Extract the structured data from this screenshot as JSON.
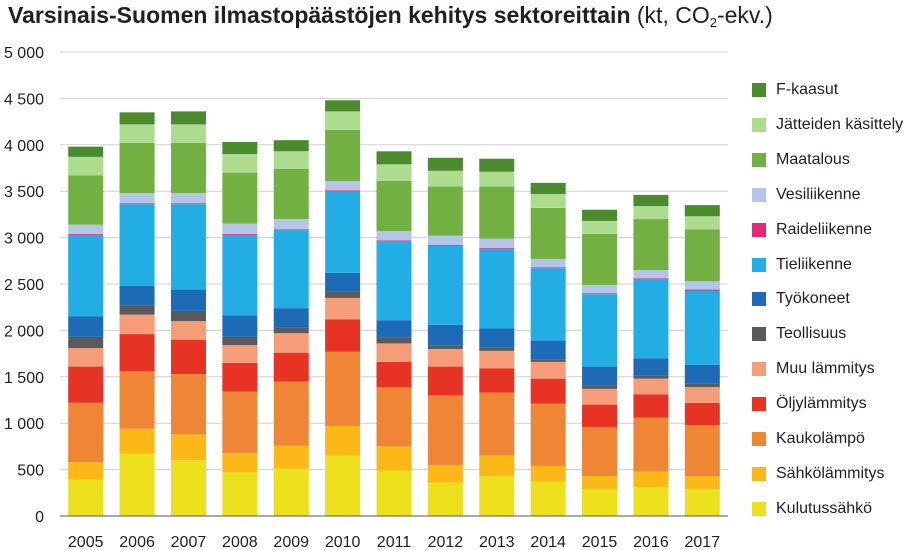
{
  "title": {
    "main": "Varsinais-Suomen ilmastopäästöjen kehitys sektoreittain",
    "unit_open": "(kt, CO",
    "unit_sub": "2",
    "unit_close": "-ekv.)"
  },
  "chart_data": {
    "type": "bar",
    "stacked": true,
    "title": "Varsinais-Suomen ilmastopäästöjen kehitys sektoreittain (kt, CO2-ekv.)",
    "xlabel": "",
    "ylabel": "",
    "ylim": [
      0,
      5000
    ],
    "yticks": [
      0,
      500,
      1000,
      1500,
      2000,
      2500,
      3000,
      3500,
      4000,
      4500,
      5000
    ],
    "ytick_labels": [
      "0",
      "500",
      "1 000",
      "1 500",
      "2 000",
      "2 500",
      "3 000",
      "3 500",
      "4 000",
      "4 500",
      "5 000"
    ],
    "grid": true,
    "legend_position": "right",
    "categories": [
      "2005",
      "2006",
      "2007",
      "2008",
      "2009",
      "2010",
      "2011",
      "2012",
      "2013",
      "2014",
      "2015",
      "2016",
      "2017"
    ],
    "series": [
      {
        "name": "Kulutussähkö",
        "color": "#ede11e",
        "values": [
          390,
          670,
          600,
          470,
          510,
          650,
          490,
          360,
          430,
          370,
          290,
          310,
          290
        ]
      },
      {
        "name": "Sähkölämmitys",
        "color": "#fbb816",
        "values": [
          190,
          270,
          280,
          210,
          250,
          320,
          260,
          190,
          220,
          170,
          140,
          170,
          140
        ]
      },
      {
        "name": "Kaukolämpö",
        "color": "#ef8636",
        "values": [
          640,
          620,
          650,
          660,
          690,
          800,
          640,
          750,
          680,
          670,
          530,
          580,
          550
        ]
      },
      {
        "name": "Öljylämmitys",
        "color": "#e63323",
        "values": [
          390,
          400,
          370,
          310,
          310,
          350,
          270,
          310,
          260,
          270,
          240,
          250,
          240
        ]
      },
      {
        "name": "Muu lämmitys",
        "color": "#f59c78",
        "values": [
          200,
          210,
          200,
          190,
          210,
          230,
          200,
          190,
          190,
          180,
          170,
          170,
          170
        ]
      },
      {
        "name": "Teollisuus",
        "color": "#595a5c",
        "values": [
          120,
          100,
          110,
          90,
          60,
          70,
          60,
          40,
          40,
          30,
          40,
          30,
          40
        ]
      },
      {
        "name": "Työkoneet",
        "color": "#1d6bb6",
        "values": [
          220,
          210,
          230,
          230,
          210,
          200,
          190,
          220,
          200,
          200,
          200,
          190,
          200
        ]
      },
      {
        "name": "Tieliikenne",
        "color": "#22aee4",
        "values": [
          880,
          880,
          920,
          870,
          840,
          880,
          850,
          850,
          860,
          780,
          780,
          850,
          800
        ]
      },
      {
        "name": "Raideliikenne",
        "color": "#e6287a",
        "values": [
          10,
          10,
          10,
          10,
          10,
          10,
          10,
          10,
          10,
          10,
          10,
          10,
          10
        ]
      },
      {
        "name": "Vesiliikenne",
        "color": "#b4c5e7",
        "values": [
          100,
          110,
          110,
          110,
          110,
          100,
          100,
          100,
          100,
          90,
          90,
          90,
          90
        ]
      },
      {
        "name": "Maatalous",
        "color": "#73b043",
        "values": [
          530,
          540,
          540,
          550,
          540,
          550,
          540,
          530,
          560,
          550,
          550,
          550,
          560
        ]
      },
      {
        "name": "Jätteiden käsittely",
        "color": "#addc8f",
        "values": [
          200,
          200,
          200,
          200,
          190,
          200,
          180,
          170,
          160,
          150,
          140,
          140,
          140
        ]
      },
      {
        "name": "F-kaasut",
        "color": "#4c8a2e",
        "values": [
          110,
          130,
          140,
          130,
          120,
          120,
          140,
          140,
          140,
          120,
          120,
          120,
          120
        ]
      }
    ]
  }
}
